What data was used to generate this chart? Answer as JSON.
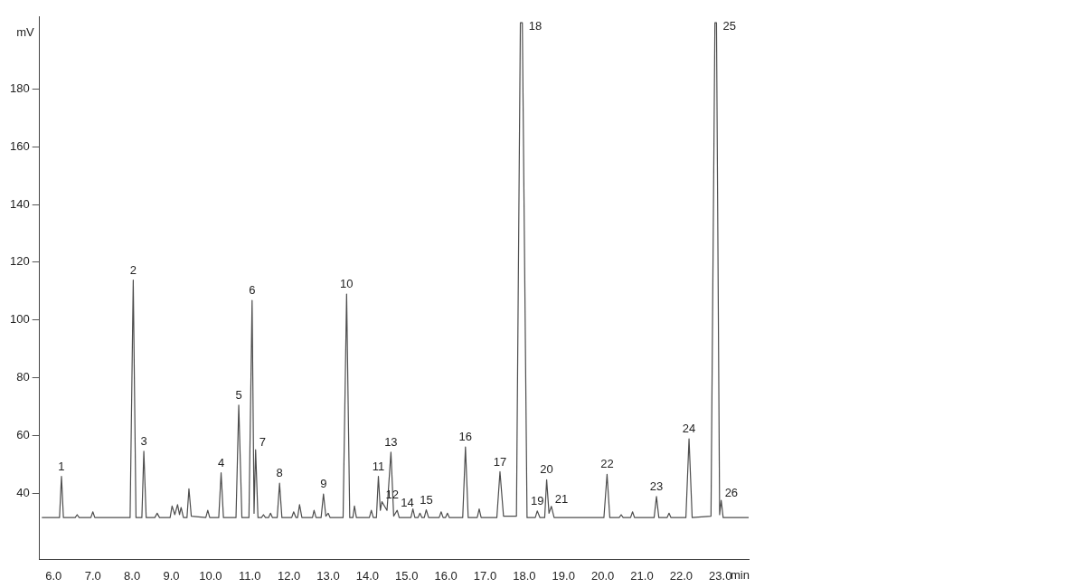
{
  "chart_data": {
    "type": "line",
    "color": "#4d4d4d",
    "xlabel": "min",
    "ylabel": "mV",
    "xlim": [
      5.64,
      23.72
    ],
    "ylim": [
      17,
      205
    ],
    "xticks": [
      {
        "value": 6,
        "label": "6.0"
      },
      {
        "value": 7,
        "label": "7.0"
      },
      {
        "value": 8,
        "label": "8.0"
      },
      {
        "value": 9,
        "label": "9.0"
      },
      {
        "value": 10,
        "label": "10.0"
      },
      {
        "value": 11,
        "label": "11.0"
      },
      {
        "value": 12,
        "label": "12.0"
      },
      {
        "value": 13,
        "label": "13.0"
      },
      {
        "value": 14,
        "label": "14.0"
      },
      {
        "value": 15,
        "label": "15.0"
      },
      {
        "value": 16,
        "label": "16.0"
      },
      {
        "value": 17,
        "label": "17.0"
      },
      {
        "value": 18,
        "label": "18.0"
      },
      {
        "value": 19,
        "label": "19.0"
      },
      {
        "value": 20,
        "label": "20.0"
      },
      {
        "value": 21,
        "label": "21.0"
      },
      {
        "value": 22,
        "label": "22.0"
      },
      {
        "value": 23,
        "label": "23.0"
      }
    ],
    "yticks": [
      40,
      60,
      80,
      100,
      120,
      140,
      160,
      180
    ],
    "x": [
      5.7,
      6.15,
      6.2,
      6.25,
      6.55,
      6.6,
      6.65,
      6.95,
      7.0,
      7.05,
      7.95,
      8.03,
      8.1,
      8.25,
      8.3,
      8.36,
      8.58,
      8.64,
      8.7,
      8.97,
      9.02,
      9.09,
      9.16,
      9.21,
      9.25,
      9.31,
      9.4,
      9.45,
      9.51,
      9.88,
      9.93,
      9.98,
      10.21,
      10.27,
      10.33,
      10.65,
      10.72,
      10.8,
      10.98,
      11.06,
      11.11,
      11.15,
      11.21,
      11.3,
      11.35,
      11.4,
      11.48,
      11.53,
      11.58,
      11.7,
      11.76,
      11.82,
      12.07,
      12.12,
      12.18,
      12.22,
      12.27,
      12.33,
      12.6,
      12.64,
      12.69,
      12.82,
      12.88,
      12.94,
      13.0,
      13.05,
      13.38,
      13.47,
      13.55,
      13.63,
      13.67,
      13.72,
      14.05,
      14.1,
      14.15,
      14.23,
      14.28,
      14.33,
      14.37,
      14.5,
      14.6,
      14.67,
      14.76,
      14.81,
      15.11,
      15.16,
      15.21,
      15.29,
      15.34,
      15.39,
      15.45,
      15.5,
      15.56,
      15.83,
      15.88,
      15.93,
      15.99,
      16.04,
      16.09,
      16.43,
      16.5,
      16.57,
      16.8,
      16.85,
      16.9,
      17.3,
      17.38,
      17.47,
      17.8,
      17.9,
      17.95,
      18.07,
      18.28,
      18.33,
      18.4,
      18.52,
      18.57,
      18.63,
      18.69,
      18.76,
      20.03,
      20.11,
      20.18,
      20.42,
      20.47,
      20.52,
      20.71,
      20.76,
      20.81,
      21.31,
      21.37,
      21.43,
      21.64,
      21.69,
      21.74,
      22.12,
      22.2,
      22.28,
      22.76,
      22.86,
      22.9,
      22.98,
      23.02,
      23.07,
      23.72
    ],
    "values": [
      31.5,
      31.5,
      45.8,
      31.5,
      31.5,
      32.5,
      31.5,
      31.5,
      33.5,
      31.5,
      31.5,
      113.8,
      31.5,
      31.5,
      54.5,
      31.5,
      31.5,
      33,
      31.5,
      31.5,
      35.5,
      32.5,
      36,
      32.5,
      35,
      31.5,
      31.5,
      41.5,
      32,
      31.5,
      34,
      31.5,
      31.5,
      47,
      31.5,
      31.5,
      70.5,
      31.5,
      31.5,
      106.8,
      33,
      55,
      31.5,
      31.5,
      32.5,
      31.5,
      31.5,
      33,
      31.5,
      31.5,
      43.4,
      31.5,
      31.5,
      33.5,
      31.5,
      31.5,
      36,
      31.5,
      31.5,
      34,
      31.5,
      31.5,
      39.7,
      32,
      33,
      31.5,
      31.5,
      109,
      31.5,
      31.5,
      35.5,
      31.5,
      31.5,
      34,
      31.5,
      31.5,
      45.8,
      34,
      37,
      34,
      54.2,
      32,
      34,
      31.5,
      31.5,
      34.5,
      31.5,
      31.5,
      33,
      31.5,
      31.5,
      34.2,
      31.5,
      31.5,
      33.5,
      31.5,
      31.5,
      33,
      31.5,
      31.5,
      56,
      31.5,
      31.5,
      34.5,
      31.5,
      31.5,
      47.4,
      32,
      32,
      203,
      203,
      31.5,
      31.5,
      33.8,
      31.5,
      31.5,
      44.6,
      33,
      35.4,
      31.5,
      31.5,
      46.5,
      31.5,
      31.5,
      32.5,
      31.5,
      31.5,
      33.5,
      31.5,
      31.5,
      38.8,
      31.5,
      31.5,
      33,
      31.5,
      31.5,
      58.8,
      31.5,
      32,
      203,
      203,
      32.5,
      37.5,
      31.5,
      31.5
    ],
    "annotations": [
      {
        "text": "1",
        "x": 6.2,
        "y": 45.8
      },
      {
        "text": "2",
        "x": 8.03,
        "y": 113.8
      },
      {
        "text": "3",
        "x": 8.3,
        "y": 54.5
      },
      {
        "text": "4",
        "x": 10.27,
        "y": 47
      },
      {
        "text": "5",
        "x": 10.72,
        "y": 70.5
      },
      {
        "text": "6",
        "x": 11.06,
        "y": 106.8
      },
      {
        "text": "7",
        "x": 11.15,
        "y": 55
      },
      {
        "text": "8",
        "x": 11.76,
        "y": 43.4
      },
      {
        "text": "9",
        "x": 12.88,
        "y": 39.7
      },
      {
        "text": "10",
        "x": 13.47,
        "y": 109
      },
      {
        "text": "11",
        "x": 14.28,
        "y": 45.8
      },
      {
        "text": "12",
        "x": 14.37,
        "y": 37
      },
      {
        "text": "13",
        "x": 14.6,
        "y": 54.2
      },
      {
        "text": "14",
        "x": 14.76,
        "y": 34
      },
      {
        "text": "15",
        "x": 15.5,
        "y": 34.2
      },
      {
        "text": "16",
        "x": 16.5,
        "y": 56
      },
      {
        "text": "17",
        "x": 17.38,
        "y": 47.4
      },
      {
        "text": "18",
        "x": 17.95,
        "y": 203
      },
      {
        "text": "19",
        "x": 18.33,
        "y": 33.8
      },
      {
        "text": "20",
        "x": 18.57,
        "y": 44.6
      },
      {
        "text": "21",
        "x": 18.69,
        "y": 35.4
      },
      {
        "text": "22",
        "x": 20.11,
        "y": 46.5
      },
      {
        "text": "23",
        "x": 21.37,
        "y": 38.8
      },
      {
        "text": "24",
        "x": 22.2,
        "y": 58.8
      },
      {
        "text": "25",
        "x": 22.9,
        "y": 203
      },
      {
        "text": "26",
        "x": 23.02,
        "y": 37.5
      }
    ]
  }
}
